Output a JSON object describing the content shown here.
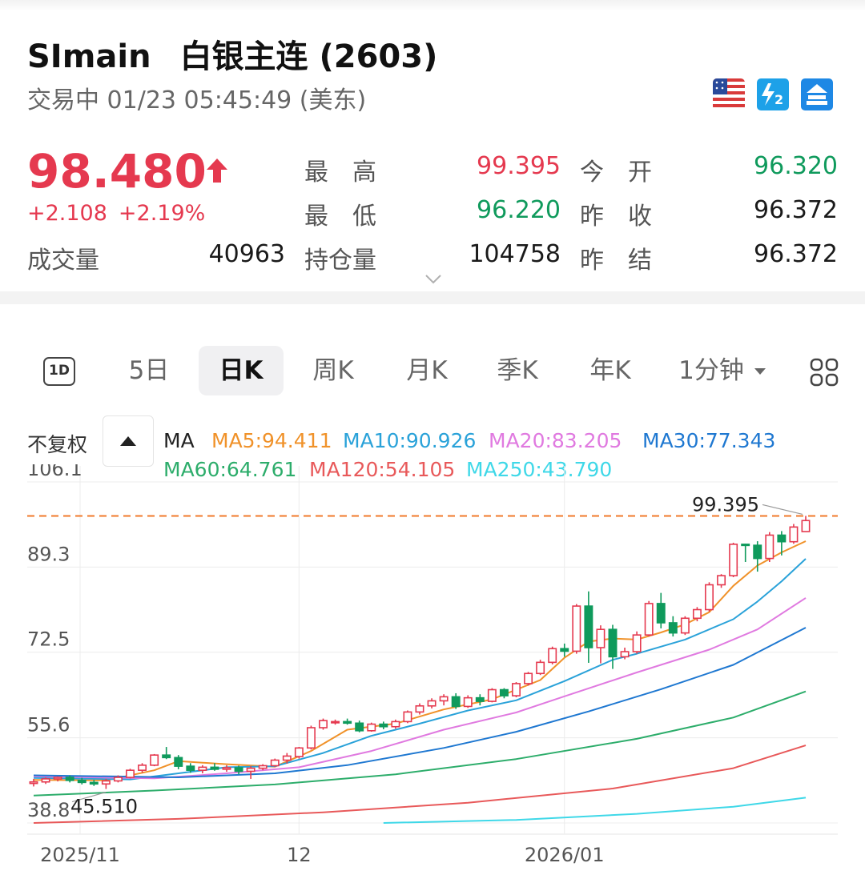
{
  "header": {
    "symbol": "SImain",
    "name": "白银主连 (2603)",
    "status": "交易中 01/23 05:45:49 (美东)"
  },
  "quote": {
    "price": "98.480",
    "change": "+2.108",
    "change_pct": "+2.19%",
    "volume_label": "成交量",
    "volume": "40963",
    "high_label": "最　高",
    "high": "99.395",
    "low_label": "最　低",
    "low": "96.220",
    "oi_label": "持仓量",
    "open_interest": "104758",
    "open_label": "今　开",
    "open": "96.320",
    "prev_close_label": "昨　收",
    "prev_close": "96.372",
    "prev_settle_label": "昨　结",
    "prev_settle": "96.372"
  },
  "tab_1d": "1D",
  "tabs": [
    "5日",
    "日K",
    "周K",
    "月K",
    "季K",
    "年K",
    "1分钟"
  ],
  "active_tab": "日K",
  "icons": {
    "flag": "us-flag-icon",
    "level2": "level2-icon",
    "exchange": "exchange-icon",
    "expand": "chevron-down-icon",
    "adjust_toggle": "triangle-up-icon",
    "layout": "grid-icon"
  },
  "colors": {
    "up": "#e5394f",
    "down": "#0f9a5c",
    "ma5": "#f0922a",
    "ma10": "#2aa2d9",
    "ma20": "#e07ae0",
    "ma30": "#1f78d1",
    "ma60": "#2dad6b",
    "ma120": "#e8595a",
    "ma250": "#3fd8e8",
    "reference": "#f07a2a"
  },
  "indicator": {
    "adjust": "不复权",
    "ma": "MA",
    "ma5": "MA5:94.411",
    "ma10": "MA10:90.926",
    "ma20": "MA20:83.205",
    "ma30": "MA30:77.343",
    "ma60": "MA60:64.761",
    "ma120": "MA120:54.105",
    "ma250": "MA250:43.790"
  },
  "chart_data": {
    "type": "candlestick",
    "ylim": [
      38.8,
      106.1
    ],
    "y_ticks": [
      "106.1",
      "89.3",
      "72.5",
      "55.6",
      "38.8"
    ],
    "x_ticks": [
      {
        "label": "2025/11",
        "index": 0
      },
      {
        "label": "12",
        "index": 22
      },
      {
        "label": "2026/01",
        "index": 44
      }
    ],
    "high_marker": "99.395",
    "low_marker": "45.510",
    "reference_line": 99.395,
    "candles": [
      [
        46.6,
        47.5,
        46.0,
        46.9
      ],
      [
        46.9,
        47.8,
        46.5,
        47.5
      ],
      [
        47.5,
        48.0,
        47.0,
        47.8
      ],
      [
        47.8,
        48.2,
        46.8,
        47.2
      ],
      [
        47.2,
        47.7,
        46.4,
        46.8
      ],
      [
        46.8,
        47.3,
        46.1,
        46.5
      ],
      [
        46.5,
        47.5,
        45.51,
        47.1
      ],
      [
        47.1,
        48.2,
        46.8,
        47.8
      ],
      [
        47.8,
        49.5,
        47.6,
        49.2
      ],
      [
        49.2,
        50.6,
        48.7,
        50.2
      ],
      [
        50.2,
        52.4,
        50.0,
        52.2
      ],
      [
        52.2,
        53.8,
        51.4,
        51.7
      ],
      [
        51.7,
        52.2,
        49.4,
        50.0
      ],
      [
        50.0,
        50.6,
        48.7,
        49.2
      ],
      [
        49.2,
        50.2,
        48.6,
        49.8
      ],
      [
        49.8,
        50.6,
        49.1,
        49.4
      ],
      [
        49.4,
        50.2,
        48.9,
        49.7
      ],
      [
        49.7,
        50.1,
        48.4,
        49.0
      ],
      [
        49.0,
        50.0,
        47.5,
        49.6
      ],
      [
        49.6,
        50.4,
        49.2,
        50.1
      ],
      [
        50.1,
        51.5,
        49.9,
        51.2
      ],
      [
        51.2,
        52.6,
        50.5,
        52.0
      ],
      [
        51.9,
        53.8,
        51.5,
        53.6
      ],
      [
        53.6,
        58.0,
        53.3,
        57.6
      ],
      [
        57.6,
        59.4,
        57.2,
        59.0
      ],
      [
        58.8,
        59.2,
        58.2,
        58.8
      ],
      [
        58.8,
        59.4,
        58.2,
        58.5
      ],
      [
        58.5,
        59.0,
        56.7,
        57.0
      ],
      [
        57.0,
        58.6,
        56.8,
        58.3
      ],
      [
        58.3,
        58.8,
        57.3,
        57.8
      ],
      [
        57.8,
        59.2,
        57.4,
        58.8
      ],
      [
        58.8,
        61.0,
        58.5,
        60.7
      ],
      [
        60.7,
        62.4,
        60.2,
        61.9
      ],
      [
        61.9,
        63.4,
        61.4,
        62.9
      ],
      [
        62.9,
        64.2,
        62.0,
        63.7
      ],
      [
        63.7,
        64.4,
        61.3,
        61.8
      ],
      [
        61.8,
        64.0,
        61.5,
        63.5
      ],
      [
        63.5,
        64.2,
        62.0,
        62.8
      ],
      [
        62.8,
        65.4,
        62.6,
        65.1
      ],
      [
        65.1,
        65.4,
        63.4,
        63.9
      ],
      [
        63.9,
        66.6,
        63.6,
        66.3
      ],
      [
        66.3,
        68.6,
        65.9,
        68.3
      ],
      [
        68.3,
        71.0,
        68.0,
        70.5
      ],
      [
        70.5,
        73.6,
        70.1,
        73.2
      ],
      [
        73.2,
        74.2,
        71.6,
        72.7
      ],
      [
        72.7,
        82.0,
        72.2,
        81.6
      ],
      [
        81.6,
        84.5,
        70.4,
        73.4
      ],
      [
        73.4,
        77.8,
        70.3,
        77.0
      ],
      [
        77.0,
        77.9,
        69.2,
        71.6
      ],
      [
        71.6,
        73.4,
        71.1,
        72.6
      ],
      [
        72.6,
        76.6,
        72.2,
        75.9
      ],
      [
        75.9,
        82.6,
        75.6,
        82.1
      ],
      [
        82.1,
        84.2,
        77.2,
        78.3
      ],
      [
        78.3,
        79.6,
        75.6,
        76.3
      ],
      [
        76.3,
        79.6,
        75.9,
        79.2
      ],
      [
        79.2,
        81.4,
        78.6,
        80.9
      ],
      [
        80.9,
        86.3,
        80.5,
        85.8
      ],
      [
        85.8,
        87.9,
        85.2,
        87.6
      ],
      [
        87.6,
        94.1,
        87.3,
        93.8
      ],
      [
        93.8,
        93.9,
        90.3,
        93.6
      ],
      [
        93.6,
        94.4,
        88.4,
        91.0
      ],
      [
        91.0,
        96.2,
        90.3,
        95.6
      ],
      [
        95.6,
        96.4,
        91.6,
        94.3
      ],
      [
        94.3,
        97.8,
        93.9,
        97.2
      ],
      [
        96.3,
        99.395,
        96.22,
        98.48
      ]
    ],
    "moving_averages": [
      {
        "name": "MA5",
        "last": 94.411,
        "points": [
          [
            0,
            47.3
          ],
          [
            6,
            47.2
          ],
          [
            10,
            49.2
          ],
          [
            12,
            51.0
          ],
          [
            16,
            50.4
          ],
          [
            20,
            49.9
          ],
          [
            23,
            53.0
          ],
          [
            26,
            57.2
          ],
          [
            30,
            58.4
          ],
          [
            34,
            61.2
          ],
          [
            38,
            63.2
          ],
          [
            42,
            67.0
          ],
          [
            44,
            71.4
          ],
          [
            46,
            74.6
          ],
          [
            48,
            75.2
          ],
          [
            50,
            75.0
          ],
          [
            52,
            76.4
          ],
          [
            54,
            78.0
          ],
          [
            56,
            80.4
          ],
          [
            58,
            85.6
          ],
          [
            60,
            89.6
          ],
          [
            62,
            92.2
          ],
          [
            64,
            94.411
          ]
        ]
      },
      {
        "name": "MA10",
        "last": 90.926,
        "points": [
          [
            0,
            47.7
          ],
          [
            8,
            47.4
          ],
          [
            12,
            48.6
          ],
          [
            16,
            49.8
          ],
          [
            20,
            50.0
          ],
          [
            24,
            52.6
          ],
          [
            28,
            56.0
          ],
          [
            32,
            58.4
          ],
          [
            36,
            61.0
          ],
          [
            40,
            63.0
          ],
          [
            44,
            66.8
          ],
          [
            48,
            71.0
          ],
          [
            50,
            72.2
          ],
          [
            54,
            75.0
          ],
          [
            58,
            79.0
          ],
          [
            60,
            82.5
          ],
          [
            62,
            86.5
          ],
          [
            64,
            90.926
          ]
        ]
      },
      {
        "name": "MA20",
        "last": 83.205,
        "points": [
          [
            0,
            48.0
          ],
          [
            10,
            47.6
          ],
          [
            16,
            48.6
          ],
          [
            22,
            49.8
          ],
          [
            28,
            53.0
          ],
          [
            34,
            57.2
          ],
          [
            40,
            60.6
          ],
          [
            44,
            63.8
          ],
          [
            50,
            68.5
          ],
          [
            56,
            73.0
          ],
          [
            60,
            77.0
          ],
          [
            64,
            83.205
          ]
        ]
      },
      {
        "name": "MA30",
        "last": 77.343,
        "points": [
          [
            0,
            48.2
          ],
          [
            12,
            47.8
          ],
          [
            20,
            48.6
          ],
          [
            26,
            50.2
          ],
          [
            34,
            53.6
          ],
          [
            40,
            56.8
          ],
          [
            46,
            60.8
          ],
          [
            52,
            65.2
          ],
          [
            58,
            70.0
          ],
          [
            64,
            77.343
          ]
        ]
      },
      {
        "name": "MA60",
        "last": 64.761,
        "points": [
          [
            0,
            44.2
          ],
          [
            10,
            45.2
          ],
          [
            20,
            46.4
          ],
          [
            30,
            48.4
          ],
          [
            40,
            51.4
          ],
          [
            50,
            55.4
          ],
          [
            58,
            59.6
          ],
          [
            64,
            64.761
          ]
        ]
      },
      {
        "name": "MA120",
        "last": 54.105,
        "points": [
          [
            0,
            38.8
          ],
          [
            12,
            39.6
          ],
          [
            24,
            40.9
          ],
          [
            36,
            42.8
          ],
          [
            48,
            45.6
          ],
          [
            58,
            49.6
          ],
          [
            64,
            54.105
          ]
        ]
      },
      {
        "name": "MA250",
        "last": 43.79,
        "points": [
          [
            29,
            38.8
          ],
          [
            40,
            39.4
          ],
          [
            50,
            40.6
          ],
          [
            58,
            42.0
          ],
          [
            64,
            43.79
          ]
        ]
      }
    ]
  }
}
